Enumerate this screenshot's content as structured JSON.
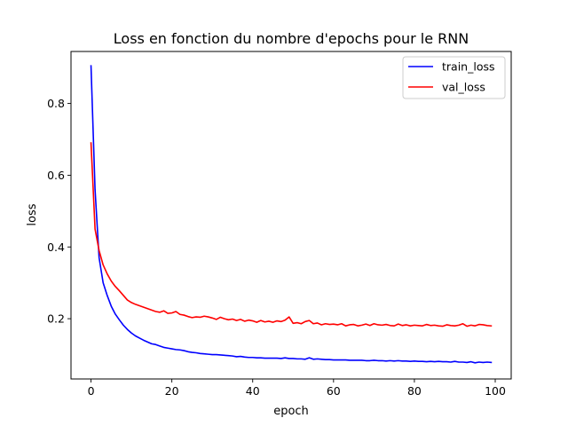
{
  "chart_data": {
    "type": "line",
    "title": "Loss en fonction du nombre d'epochs pour le RNN",
    "xlabel": "epoch",
    "ylabel": "loss",
    "xlim": [
      -4.95,
      103.95
    ],
    "ylim": [
      0.032,
      0.945
    ],
    "xticks": [
      0,
      20,
      40,
      60,
      80,
      100
    ],
    "yticks": [
      0.2,
      0.4,
      0.6,
      0.8
    ],
    "xtick_labels": [
      "0",
      "20",
      "40",
      "60",
      "80",
      "100"
    ],
    "ytick_labels": [
      "0.2",
      "0.4",
      "0.6",
      "0.8"
    ],
    "grid": false,
    "legend_position": "top-right",
    "x": [
      0,
      1,
      2,
      3,
      4,
      5,
      6,
      7,
      8,
      9,
      10,
      11,
      12,
      13,
      14,
      15,
      16,
      17,
      18,
      19,
      20,
      21,
      22,
      23,
      24,
      25,
      26,
      27,
      28,
      29,
      30,
      31,
      32,
      33,
      34,
      35,
      36,
      37,
      38,
      39,
      40,
      41,
      42,
      43,
      44,
      45,
      46,
      47,
      48,
      49,
      50,
      51,
      52,
      53,
      54,
      55,
      56,
      57,
      58,
      59,
      60,
      61,
      62,
      63,
      64,
      65,
      66,
      67,
      68,
      69,
      70,
      71,
      72,
      73,
      74,
      75,
      76,
      77,
      78,
      79,
      80,
      81,
      82,
      83,
      84,
      85,
      86,
      87,
      88,
      89,
      90,
      91,
      92,
      93,
      94,
      95,
      96,
      97,
      98,
      99
    ],
    "series": [
      {
        "name": "train_loss",
        "color": "#0000ff",
        "values": [
          0.905,
          0.56,
          0.37,
          0.3,
          0.265,
          0.235,
          0.213,
          0.197,
          0.182,
          0.17,
          0.16,
          0.152,
          0.146,
          0.14,
          0.135,
          0.13,
          0.128,
          0.124,
          0.12,
          0.118,
          0.116,
          0.114,
          0.113,
          0.111,
          0.108,
          0.106,
          0.105,
          0.103,
          0.102,
          0.101,
          0.1,
          0.1,
          0.099,
          0.098,
          0.097,
          0.096,
          0.094,
          0.095,
          0.093,
          0.092,
          0.092,
          0.091,
          0.091,
          0.09,
          0.09,
          0.09,
          0.09,
          0.089,
          0.091,
          0.089,
          0.089,
          0.088,
          0.088,
          0.087,
          0.091,
          0.087,
          0.088,
          0.087,
          0.086,
          0.086,
          0.085,
          0.085,
          0.085,
          0.085,
          0.084,
          0.084,
          0.084,
          0.084,
          0.083,
          0.083,
          0.084,
          0.083,
          0.083,
          0.082,
          0.083,
          0.082,
          0.083,
          0.082,
          0.082,
          0.081,
          0.082,
          0.081,
          0.081,
          0.08,
          0.081,
          0.08,
          0.081,
          0.08,
          0.08,
          0.079,
          0.081,
          0.079,
          0.079,
          0.078,
          0.08,
          0.077,
          0.079,
          0.078,
          0.079,
          0.078
        ]
      },
      {
        "name": "val_loss",
        "color": "#ff0000",
        "values": [
          0.69,
          0.45,
          0.39,
          0.35,
          0.325,
          0.305,
          0.29,
          0.278,
          0.265,
          0.252,
          0.245,
          0.24,
          0.236,
          0.232,
          0.228,
          0.224,
          0.22,
          0.218,
          0.222,
          0.215,
          0.216,
          0.22,
          0.212,
          0.21,
          0.206,
          0.203,
          0.205,
          0.204,
          0.207,
          0.205,
          0.202,
          0.198,
          0.204,
          0.2,
          0.197,
          0.199,
          0.195,
          0.198,
          0.193,
          0.196,
          0.194,
          0.19,
          0.195,
          0.191,
          0.193,
          0.19,
          0.194,
          0.192,
          0.196,
          0.205,
          0.187,
          0.189,
          0.186,
          0.192,
          0.195,
          0.186,
          0.188,
          0.183,
          0.186,
          0.184,
          0.185,
          0.183,
          0.186,
          0.18,
          0.183,
          0.184,
          0.18,
          0.182,
          0.185,
          0.181,
          0.186,
          0.183,
          0.182,
          0.184,
          0.181,
          0.18,
          0.185,
          0.181,
          0.183,
          0.18,
          0.182,
          0.181,
          0.18,
          0.184,
          0.181,
          0.182,
          0.18,
          0.179,
          0.183,
          0.181,
          0.18,
          0.182,
          0.186,
          0.179,
          0.182,
          0.18,
          0.184,
          0.183,
          0.181,
          0.18
        ]
      }
    ]
  }
}
